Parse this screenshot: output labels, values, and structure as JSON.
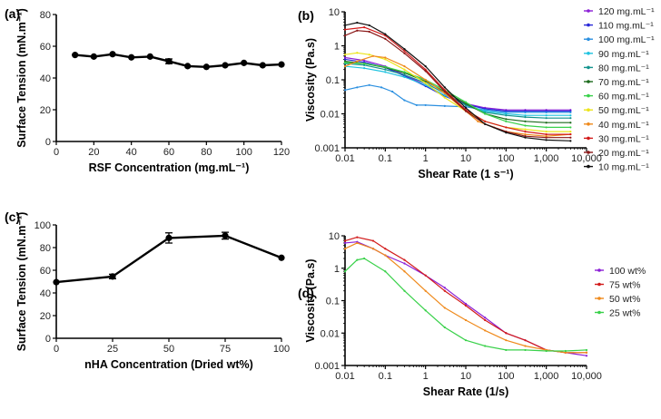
{
  "chart_data": [
    {
      "panel_label": "(a)",
      "type": "line",
      "xscale": "linear",
      "yscale": "linear",
      "xlabel": "RSF Concentration (mg.mL⁻¹)",
      "ylabel": "Surface Tension (mN.m⁻¹)",
      "xlim": [
        0,
        120
      ],
      "ylim": [
        0,
        80
      ],
      "xticks": [
        0,
        20,
        40,
        60,
        80,
        100,
        120
      ],
      "xtick_labels": [
        "0",
        "20",
        "40",
        "60",
        "80",
        "100",
        "120"
      ],
      "yticks": [
        0,
        20,
        40,
        60,
        80
      ],
      "ytick_labels": [
        "0",
        "20",
        "40",
        "60",
        "80"
      ],
      "series": [
        {
          "name": "Surface tension",
          "color": "#000000",
          "x": [
            10,
            20,
            30,
            40,
            50,
            60,
            70,
            80,
            90,
            100,
            110,
            120
          ],
          "y": [
            54.5,
            53.5,
            55,
            53,
            53.5,
            50.5,
            47.5,
            47,
            48,
            49.5,
            48,
            48.5
          ],
          "err": [
            0,
            0,
            0,
            0,
            0,
            1.5,
            0,
            0,
            0,
            0,
            0,
            0
          ]
        }
      ]
    },
    {
      "panel_label": "(b)",
      "type": "line",
      "xscale": "log",
      "yscale": "log",
      "xlabel": "Shear Rate (1 s⁻¹)",
      "ylabel": "Viscosity (Pa.s)",
      "xlim": [
        0.01,
        10000
      ],
      "ylim": [
        0.001,
        10
      ],
      "xticks": [
        0.01,
        0.1,
        1,
        10,
        100,
        1000,
        10000
      ],
      "xtick_labels": [
        "0.01",
        "0.1",
        "1",
        "10",
        "100",
        "1,000",
        "10,000"
      ],
      "yticks": [
        0.001,
        0.01,
        0.1,
        1,
        10
      ],
      "ytick_labels": [
        "0.001",
        "0.01",
        "0.1",
        "1",
        "10"
      ],
      "series": [
        {
          "name": "120 mg.mL⁻¹",
          "color": "#8b1fd6",
          "x": [
            0.01,
            0.03,
            0.1,
            0.3,
            1,
            3,
            10,
            30,
            100,
            300,
            1000,
            4000
          ],
          "y": [
            0.45,
            0.37,
            0.25,
            0.14,
            0.07,
            0.035,
            0.02,
            0.015,
            0.013,
            0.013,
            0.013,
            0.013
          ]
        },
        {
          "name": "110 mg.mL⁻¹",
          "color": "#2a2ad8",
          "x": [
            0.01,
            0.03,
            0.1,
            0.3,
            1,
            3,
            10,
            30,
            100,
            300,
            1000,
            4000
          ],
          "y": [
            0.4,
            0.33,
            0.23,
            0.13,
            0.065,
            0.033,
            0.019,
            0.014,
            0.012,
            0.012,
            0.012,
            0.012
          ]
        },
        {
          "name": "100 mg.mL⁻¹",
          "color": "#2a8fe0",
          "x": [
            0.01,
            0.02,
            0.04,
            0.08,
            0.15,
            0.3,
            0.6,
            1,
            3,
            10,
            30,
            100,
            300,
            1000,
            4000
          ],
          "y": [
            0.05,
            0.06,
            0.07,
            0.06,
            0.045,
            0.025,
            0.018,
            0.018,
            0.017,
            0.016,
            0.013,
            0.011,
            0.011,
            0.011,
            0.011
          ]
        },
        {
          "name": "90 mg.mL⁻¹",
          "color": "#1fc3e0",
          "x": [
            0.01,
            0.03,
            0.1,
            0.3,
            1,
            3,
            10,
            30,
            100,
            300,
            1000,
            4000
          ],
          "y": [
            0.25,
            0.22,
            0.17,
            0.12,
            0.07,
            0.035,
            0.018,
            0.012,
            0.01,
            0.009,
            0.009,
            0.009
          ]
        },
        {
          "name": "80 mg.mL⁻¹",
          "color": "#14948e",
          "x": [
            0.01,
            0.03,
            0.1,
            0.3,
            1,
            3,
            10,
            30,
            100,
            300,
            1000,
            4000
          ],
          "y": [
            0.3,
            0.27,
            0.2,
            0.14,
            0.08,
            0.04,
            0.018,
            0.011,
            0.009,
            0.008,
            0.0075,
            0.0075
          ]
        },
        {
          "name": "70 mg.mL⁻¹",
          "color": "#1c6a1c",
          "x": [
            0.01,
            0.03,
            0.1,
            0.3,
            1,
            3,
            10,
            30,
            100,
            300,
            1000,
            4000
          ],
          "y": [
            0.35,
            0.3,
            0.23,
            0.16,
            0.09,
            0.045,
            0.02,
            0.01,
            0.007,
            0.006,
            0.0055,
            0.0055
          ]
        },
        {
          "name": "60 mg.mL⁻¹",
          "color": "#39d14a",
          "x": [
            0.01,
            0.03,
            0.1,
            0.3,
            1,
            3,
            10,
            30,
            100,
            300,
            1000,
            4000
          ],
          "y": [
            0.32,
            0.3,
            0.24,
            0.17,
            0.1,
            0.05,
            0.022,
            0.01,
            0.006,
            0.0045,
            0.004,
            0.004
          ]
        },
        {
          "name": "50 mg.mL⁻¹",
          "color": "#ece41a",
          "x": [
            0.01,
            0.02,
            0.04,
            0.1,
            0.3,
            1,
            3,
            10,
            30,
            100,
            300,
            1000,
            4000
          ],
          "y": [
            0.55,
            0.62,
            0.55,
            0.4,
            0.2,
            0.08,
            0.03,
            0.012,
            0.006,
            0.004,
            0.0035,
            0.003,
            0.003
          ]
        },
        {
          "name": "40 mg.mL⁻¹",
          "color": "#ef8a1c",
          "x": [
            0.01,
            0.02,
            0.05,
            0.1,
            0.3,
            1,
            3,
            10,
            20,
            50,
            100,
            300,
            1000,
            4000
          ],
          "y": [
            0.25,
            0.35,
            0.5,
            0.45,
            0.25,
            0.1,
            0.04,
            0.012,
            0.006,
            0.004,
            0.003,
            0.0025,
            0.0022,
            0.0025
          ]
        },
        {
          "name": "30 mg.mL⁻¹",
          "color": "#d21a1a",
          "x": [
            0.01,
            0.03,
            0.1,
            0.3,
            1,
            3,
            10,
            30,
            100,
            300,
            1000,
            4000
          ],
          "y": [
            3,
            3.5,
            2,
            0.7,
            0.2,
            0.05,
            0.013,
            0.006,
            0.004,
            0.003,
            0.0025,
            0.0025
          ]
        },
        {
          "name": "20 mg.mL⁻¹",
          "color": "#8a1717",
          "x": [
            0.01,
            0.02,
            0.04,
            0.1,
            0.3,
            1,
            3,
            10,
            30,
            100,
            300,
            1000,
            4000
          ],
          "y": [
            2,
            2.8,
            2.6,
            1.6,
            0.6,
            0.18,
            0.045,
            0.012,
            0.005,
            0.003,
            0.0022,
            0.002,
            0.002
          ]
        },
        {
          "name": "10 mg.mL⁻¹",
          "color": "#111111",
          "x": [
            0.01,
            0.02,
            0.04,
            0.1,
            0.3,
            1,
            3,
            10,
            30,
            100,
            300,
            1000,
            4000
          ],
          "y": [
            4,
            4.8,
            4,
            2.2,
            0.8,
            0.25,
            0.06,
            0.015,
            0.005,
            0.0028,
            0.002,
            0.0017,
            0.0016
          ]
        }
      ]
    },
    {
      "panel_label": "(c)",
      "type": "line",
      "xscale": "linear",
      "yscale": "linear",
      "xlabel": "nHA Concentration (Dried wt%)",
      "ylabel": "Surface Tension (mN.m⁻¹)",
      "xlim": [
        0,
        100
      ],
      "ylim": [
        0,
        100
      ],
      "xticks": [
        0,
        25,
        50,
        75,
        100
      ],
      "xtick_labels": [
        "0",
        "25",
        "50",
        "75",
        "100"
      ],
      "yticks": [
        0,
        20,
        40,
        60,
        80,
        100
      ],
      "ytick_labels": [
        "0",
        "20",
        "40",
        "60",
        "80",
        "100"
      ],
      "series": [
        {
          "name": "Surface tension",
          "color": "#000000",
          "x": [
            0,
            25,
            50,
            75,
            100
          ],
          "y": [
            49.5,
            54.5,
            88.5,
            90.5,
            71
          ],
          "err": [
            0,
            2,
            4.5,
            3,
            0
          ]
        }
      ]
    },
    {
      "panel_label": "(d)",
      "type": "line",
      "xscale": "log",
      "yscale": "log",
      "xlabel": "Shear Rate (1/s)",
      "ylabel": "Viscosity (Pa.s)",
      "xlim": [
        0.01,
        10000
      ],
      "ylim": [
        0.001,
        10
      ],
      "xticks": [
        0.01,
        0.1,
        1,
        10,
        100,
        1000,
        10000
      ],
      "xtick_labels": [
        "0.01",
        "0.1",
        "1",
        "10",
        "100",
        "1,000",
        "10,000"
      ],
      "yticks": [
        0.001,
        0.01,
        0.1,
        1,
        10
      ],
      "ytick_labels": [
        "0.001",
        "0.01",
        "0.1",
        "1",
        "10"
      ],
      "series": [
        {
          "name": "100 wt%",
          "color": "#8b1fd6",
          "x": [
            0.01,
            0.02,
            0.05,
            0.1,
            0.3,
            1,
            3,
            10,
            30,
            100,
            300,
            1000,
            3000,
            10000
          ],
          "y": [
            6,
            6.5,
            4,
            2.5,
            1.4,
            0.6,
            0.25,
            0.08,
            0.03,
            0.01,
            0.006,
            0.003,
            0.0025,
            0.002
          ]
        },
        {
          "name": "75 wt%",
          "color": "#d21a1a",
          "x": [
            0.01,
            0.02,
            0.05,
            0.1,
            0.3,
            1,
            3,
            10,
            30,
            100,
            300,
            1000,
            3000,
            10000
          ],
          "y": [
            7,
            9,
            7,
            4,
            1.8,
            0.6,
            0.2,
            0.07,
            0.025,
            0.01,
            0.006,
            0.003,
            0.0025,
            0.0025
          ]
        },
        {
          "name": "50 wt%",
          "color": "#ef8a1c",
          "x": [
            0.01,
            0.02,
            0.05,
            0.1,
            0.3,
            1,
            3,
            10,
            30,
            100,
            300,
            1000,
            3000,
            10000
          ],
          "y": [
            4,
            6,
            4,
            2.5,
            0.8,
            0.2,
            0.06,
            0.025,
            0.012,
            0.006,
            0.004,
            0.003,
            0.0025,
            0.0025
          ]
        },
        {
          "name": "25 wt%",
          "color": "#39d14a",
          "x": [
            0.01,
            0.02,
            0.03,
            0.1,
            0.3,
            1,
            3,
            10,
            30,
            100,
            300,
            1000,
            3000,
            10000
          ],
          "y": [
            0.8,
            1.8,
            2,
            0.8,
            0.2,
            0.05,
            0.015,
            0.006,
            0.004,
            0.003,
            0.003,
            0.0028,
            0.0028,
            0.003
          ]
        }
      ]
    }
  ]
}
